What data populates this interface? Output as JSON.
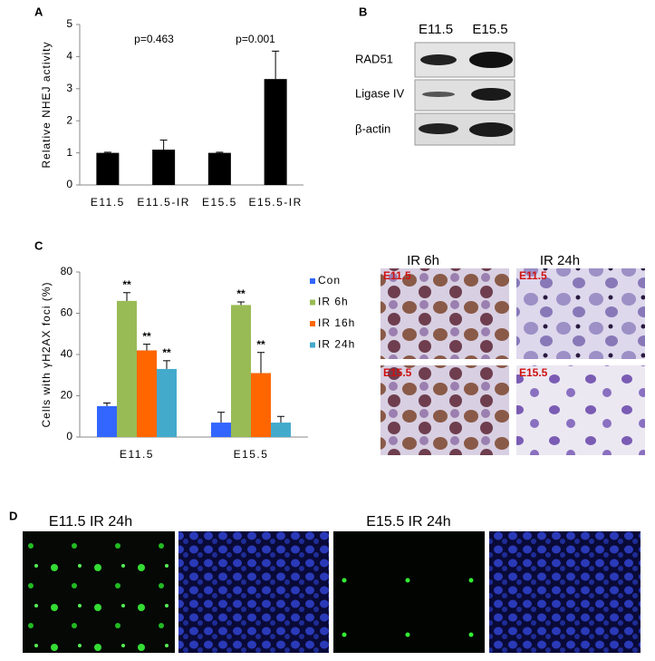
{
  "panel_labels": [
    "A",
    "B",
    "C",
    "D"
  ],
  "chart_data": [
    {
      "type": "bar",
      "ylabel": "Relative NHEJ activity",
      "categories": [
        "E11.5",
        "E11.5-IR",
        "E15.5",
        "E15.5-IR"
      ],
      "values": [
        1,
        1.1,
        1,
        3.3
      ],
      "errors": [
        0.02,
        0.3,
        0.02,
        0.87
      ],
      "color": "#000000",
      "annotations": [
        "p=0.463",
        "p=0.001"
      ],
      "ylim": [
        0,
        5
      ],
      "yticks": [
        0,
        1,
        2,
        3,
        4,
        5
      ]
    },
    {
      "type": "bar",
      "ylabel": "Cells with γH2AX foci (%)",
      "categories": [
        "E11.5",
        "E15.5"
      ],
      "series": [
        {
          "name": "Con",
          "color": "#3366ff",
          "values": [
            15,
            7
          ],
          "errors": [
            1.5,
            5
          ],
          "significance": [
            null,
            null
          ]
        },
        {
          "name": "IR 6h",
          "color": "#99bb55",
          "values": [
            66,
            64
          ],
          "errors": [
            4,
            1.5
          ],
          "significance": [
            "**",
            "**"
          ]
        },
        {
          "name": "IR 16h",
          "color": "#ff6600",
          "values": [
            42,
            31
          ],
          "errors": [
            3,
            10
          ],
          "significance": [
            "**",
            "**"
          ]
        },
        {
          "name": "IR 24h",
          "color": "#44aacc",
          "values": [
            33,
            7
          ],
          "errors": [
            4,
            3
          ],
          "significance": [
            "**",
            null
          ]
        }
      ],
      "ylim": [
        0,
        80
      ],
      "yticks": [
        0,
        20,
        40,
        60,
        80
      ]
    }
  ],
  "blot": {
    "lanes": [
      "E11.5",
      "E15.5"
    ],
    "rows": [
      "RAD51",
      "Ligase IV",
      "β-actin"
    ]
  },
  "micrographs": {
    "columns": [
      "IR 6h",
      "IR 24h"
    ],
    "tile_labels": [
      "E11.5",
      "E11.5",
      "E15.5",
      "E15.5"
    ]
  },
  "fluorescence": {
    "titles": [
      "E11.5 IR 24h",
      "E15.5 IR 24h"
    ]
  }
}
